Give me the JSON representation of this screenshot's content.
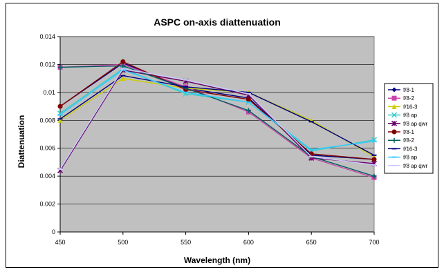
{
  "chart_data": {
    "type": "line",
    "title": "ASPC on-axis diattenuation",
    "xlabel": "Wavelength (nm)",
    "ylabel": "Diattenuation",
    "categories": [
      "450",
      "500",
      "550",
      "600",
      "650",
      "700"
    ],
    "ylim": [
      0,
      0.014
    ],
    "yticks": [
      "0",
      "0.002",
      "0.004",
      "0.006",
      "0.008",
      "0.01",
      "0.012",
      "0.014"
    ],
    "grid": true,
    "plot_background": "#c0c0c0",
    "legend_position": "right",
    "series": [
      {
        "name": "f/8-1",
        "color": "#000080",
        "marker": "diamond",
        "values": [
          0.009,
          0.0121,
          0.0103,
          0.0096,
          0.0055,
          0.0052
        ]
      },
      {
        "name": "f/8-2",
        "color": "#cc44aa",
        "marker": "square",
        "values": [
          0.0118,
          0.012,
          0.0104,
          0.0086,
          0.0053,
          0.0039
        ]
      },
      {
        "name": "f/16-3",
        "color": "#cccc00",
        "marker": "triangle",
        "values": [
          0.008,
          0.011,
          0.0103,
          0.01,
          0.008,
          0.0054
        ]
      },
      {
        "name": "f/8 ap",
        "color": "#33cccc",
        "marker": "x",
        "values": [
          0.0085,
          0.0117,
          0.0099,
          0.0093,
          0.0058,
          0.0066
        ]
      },
      {
        "name": "f/8 ap qwr",
        "color": "#660066",
        "marker": "star",
        "values": [
          0.0044,
          0.0116,
          0.0108,
          0.0098,
          0.0053,
          0.0049
        ]
      },
      {
        "name": "f/8-1",
        "color": "#800000",
        "marker": "circle",
        "values": [
          0.009,
          0.0122,
          0.0102,
          0.0095,
          0.0056,
          0.0052
        ]
      },
      {
        "name": "f/8-2",
        "color": "#006060",
        "marker": "plus",
        "values": [
          0.0118,
          0.0119,
          0.0103,
          0.0087,
          0.0054,
          0.004
        ]
      },
      {
        "name": "f/16-3",
        "color": "#000080",
        "marker": "dash",
        "values": [
          0.0081,
          0.0112,
          0.0104,
          0.01,
          0.0079,
          0.0055
        ]
      },
      {
        "name": "f/8 ap",
        "color": "#33ccff",
        "marker": "dash",
        "values": [
          0.0084,
          0.0116,
          0.01,
          0.0093,
          0.0059,
          0.0065
        ]
      },
      {
        "name": "f/8 ap qwr",
        "color": "#ccccff",
        "marker": "dash",
        "values": [
          0.0045,
          0.0117,
          0.0109,
          0.0099,
          0.0054,
          0.0048
        ]
      }
    ]
  }
}
